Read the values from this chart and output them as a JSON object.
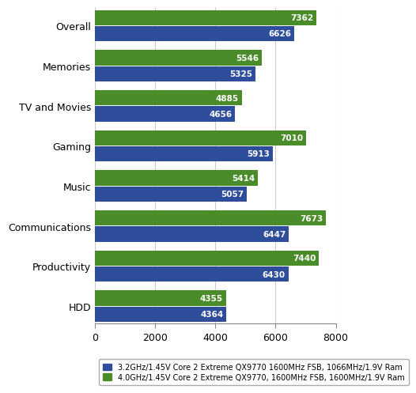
{
  "categories": [
    "Overall",
    "Memories",
    "TV and Movies",
    "Gaming",
    "Music",
    "Communications",
    "Productivity",
    "HDD"
  ],
  "blue_values": [
    6626,
    5325,
    4656,
    5913,
    5057,
    6447,
    6430,
    4364
  ],
  "green_values": [
    7362,
    5546,
    4885,
    7010,
    5414,
    7673,
    7440,
    4355
  ],
  "blue_color": "#2E4D9B",
  "green_color": "#4A8C2A",
  "bar_height": 0.38,
  "bar_gap": 0.02,
  "xlim": [
    0,
    8000
  ],
  "xticks": [
    0,
    2000,
    4000,
    6000,
    8000
  ],
  "legend_blue": "3.2GHz/1.45V Core 2 Extreme QX9770 1600MHz FSB, 1066MHz/1.9V Ram",
  "legend_green": "4.0GHz/1.45V Core 2 Extreme QX9770, 1600MHz FSB, 1600MHz/1.9V Ram",
  "tick_label_fontsize": 9,
  "value_fontsize": 7.5,
  "background_color": "#FFFFFF",
  "grid_color": "#CCCCCC"
}
